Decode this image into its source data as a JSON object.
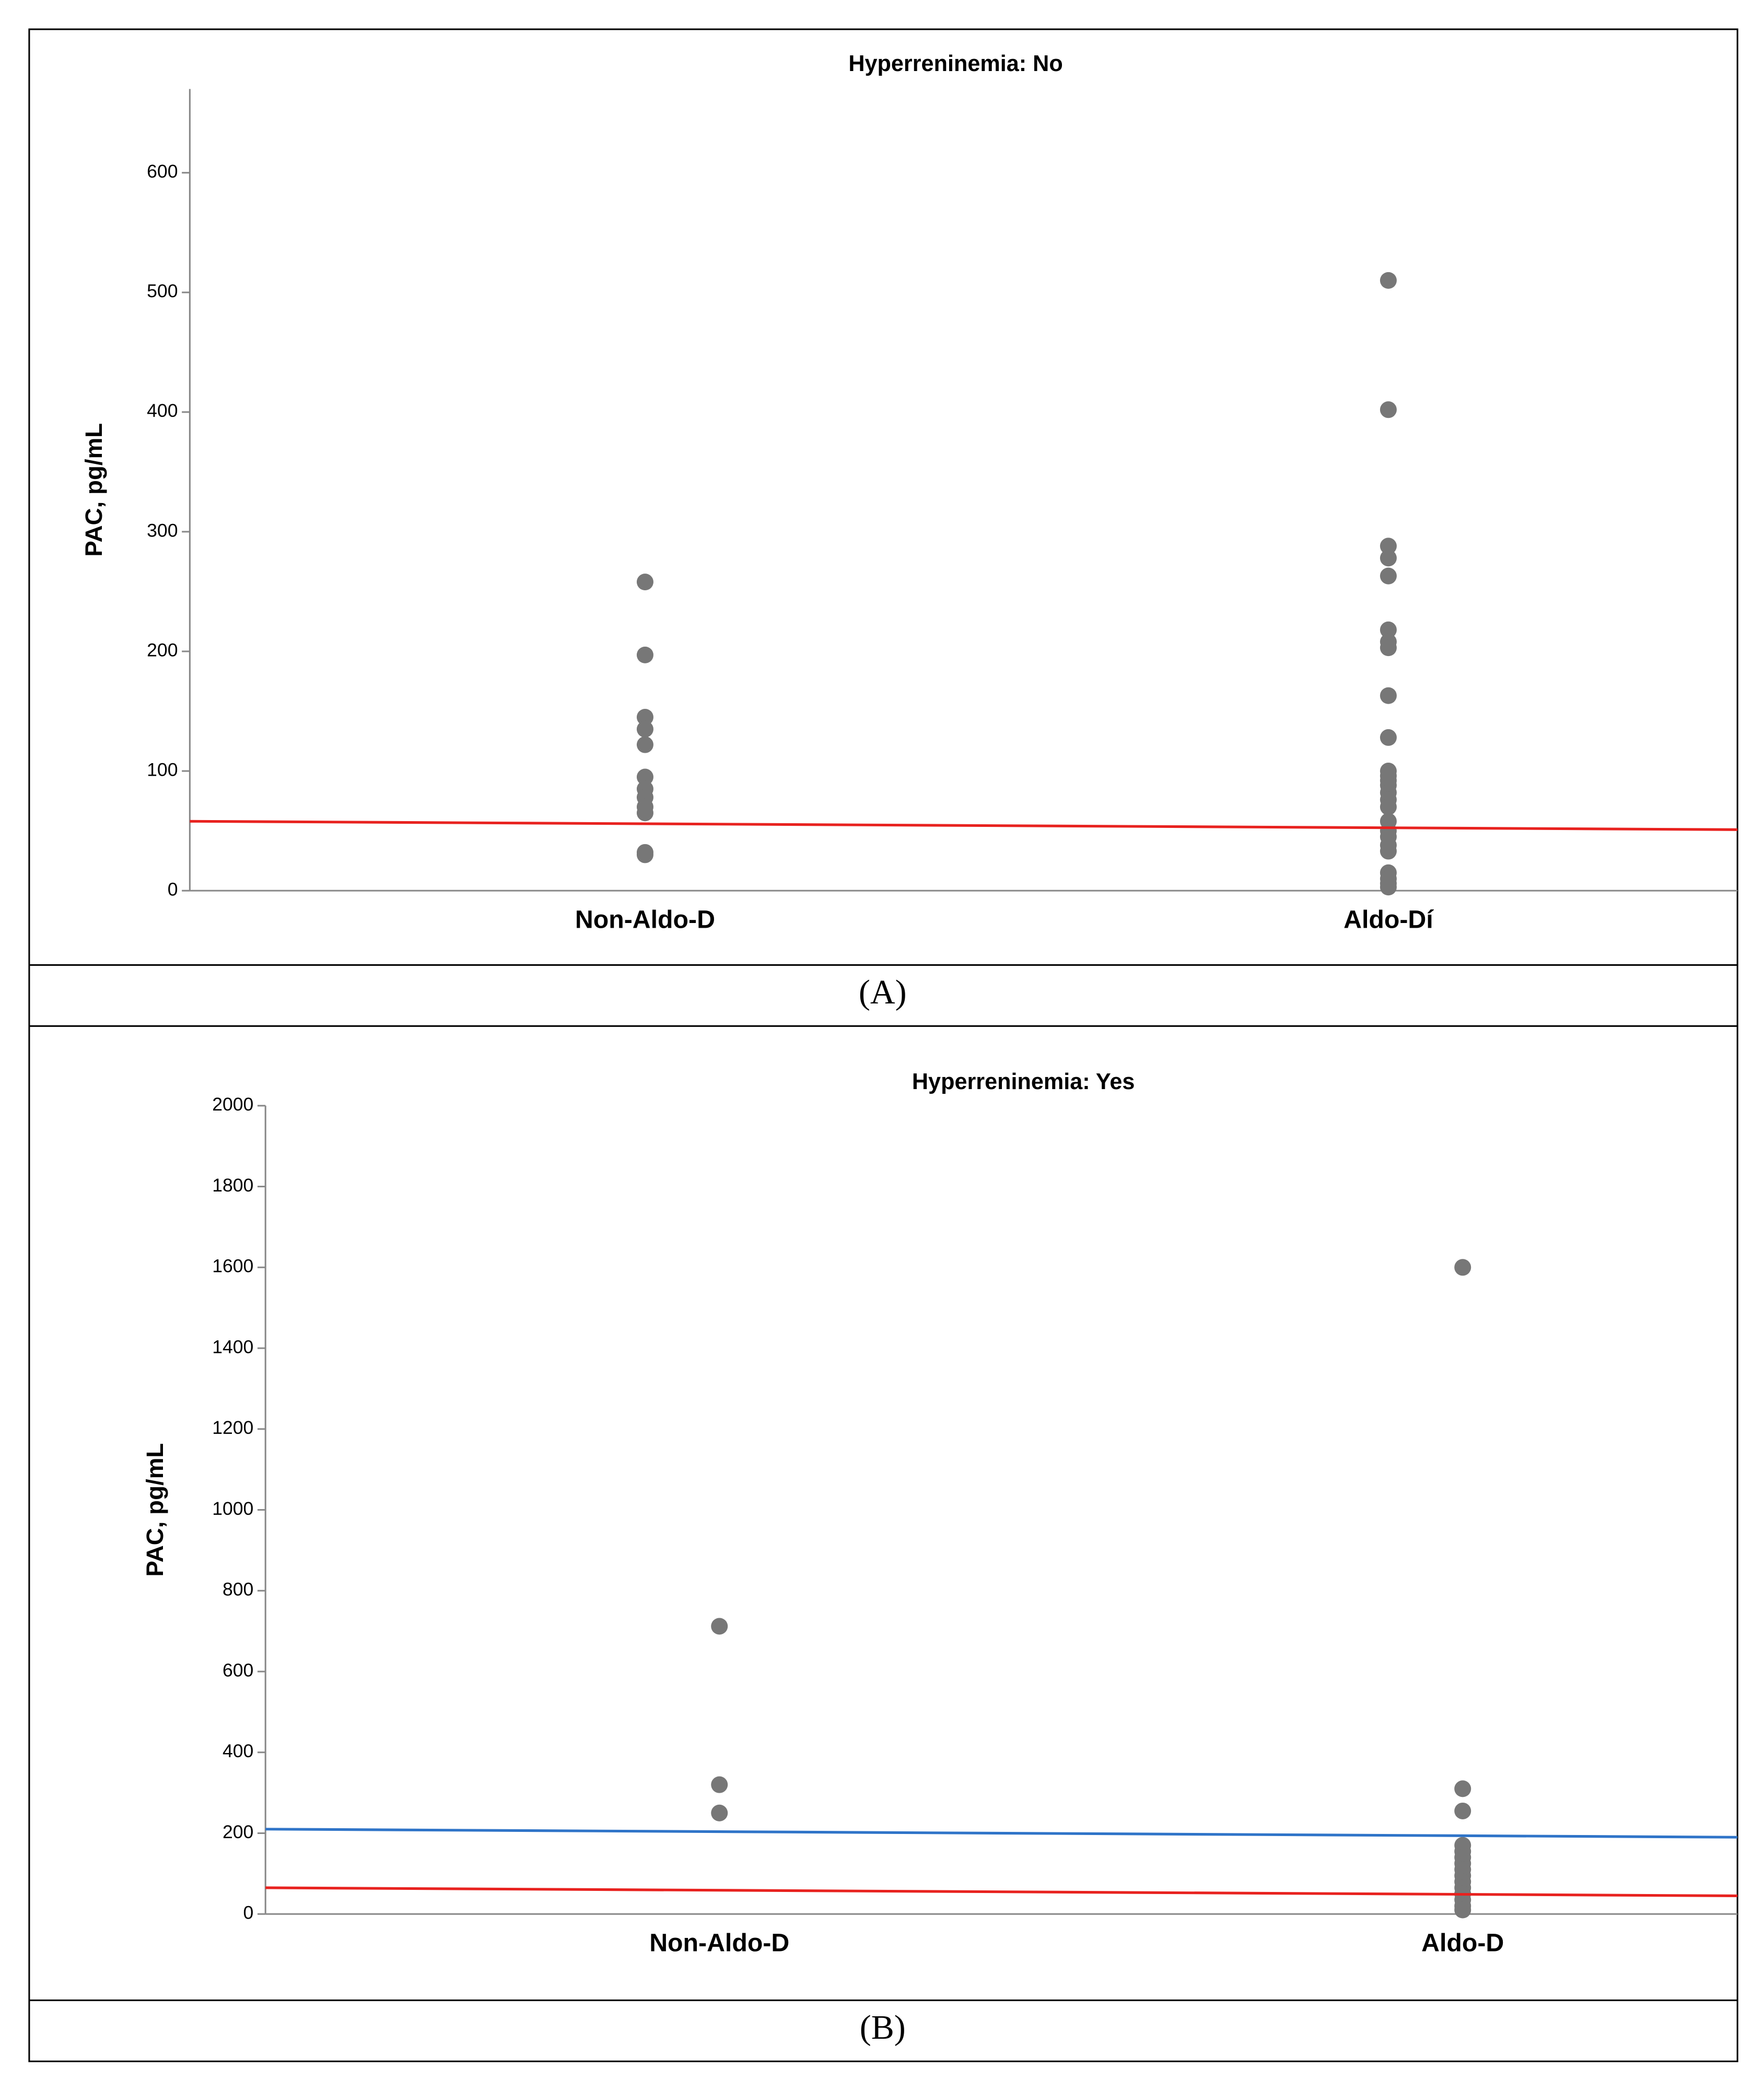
{
  "chart_data": [
    {
      "type": "strip",
      "title": "Hyperreninemia: No",
      "ylabel": "PAC, pg/mL",
      "panel_label": "(A)",
      "categories": [
        "Non-Aldo-D",
        "Aldo-Dí"
      ],
      "series": [
        {
          "color": "#777777",
          "values": [
            [
              258,
              197,
              145,
              135,
              122,
              95,
              85,
              78,
              70,
              65,
              32,
              30
            ],
            [
              510,
              402,
              288,
              278,
              263,
              218,
              208,
              203,
              163,
              128,
              100,
              96,
              92,
              88,
              82,
              76,
              70,
              58,
              50,
              45,
              38,
              33,
              15,
              10,
              6,
              3
            ]
          ]
        }
      ],
      "lines": [
        {
          "color": "#e8221f",
          "values": [
            58,
            51
          ]
        }
      ],
      "ylim": [
        0,
        670
      ],
      "yticks": [
        0,
        100,
        200,
        300,
        400,
        500,
        600
      ]
    },
    {
      "type": "strip",
      "title": "Hyperreninemia: Yes",
      "ylabel": "PAC, pg/mL",
      "panel_label": "(B)",
      "categories": [
        "Non-Aldo-D",
        "Aldo-D"
      ],
      "series": [
        {
          "color": "#777777",
          "values": [
            [
              712,
              320,
              250
            ],
            [
              1600,
              310,
              255,
              170,
              155,
              140,
              125,
              110,
              95,
              80,
              65,
              50,
              35,
              20,
              10
            ]
          ]
        }
      ],
      "lines": [
        {
          "color": "#2f74c8",
          "values": [
            210,
            190
          ]
        },
        {
          "color": "#e8221f",
          "values": [
            65,
            45
          ]
        }
      ],
      "ylim": [
        0,
        2000
      ],
      "yticks": [
        0,
        200,
        400,
        600,
        800,
        1000,
        1200,
        1400,
        1600,
        1800,
        2000
      ]
    }
  ]
}
